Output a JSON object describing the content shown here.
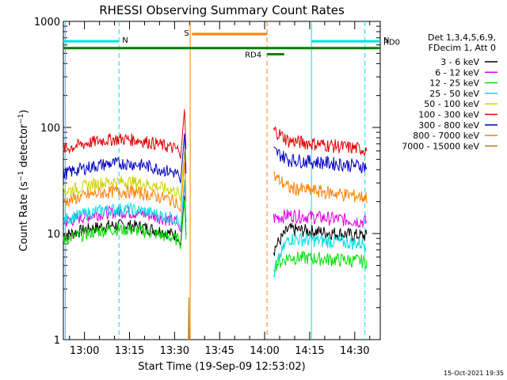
{
  "chart_data": {
    "type": "line",
    "title": "RHESSI Observing Summary Count Rates",
    "xlabel": "Start Time (19-Sep-09 12:53:02)",
    "ylabel": "Count Rate (s⁻¹ detector⁻¹)",
    "ylabel_main": "Count Rate (s",
    "ylabel_sup1": "−1",
    "ylabel_mid": " detector",
    "ylabel_sup2": "−1",
    "ylabel_end": ")",
    "y_scale": "log",
    "ylim": [
      1,
      1000
    ],
    "xlim_min": [
      -7.03,
      98.5
    ],
    "x_ticks": [
      {
        "m": 0,
        "label": "13:00"
      },
      {
        "m": 15,
        "label": "13:15"
      },
      {
        "m": 30,
        "label": "13:30"
      },
      {
        "m": 45,
        "label": "13:45"
      },
      {
        "m": 60,
        "label": "14:00"
      },
      {
        "m": 75,
        "label": "14:15"
      },
      {
        "m": 90,
        "label": "14:30"
      }
    ],
    "y_ticks": [
      {
        "v": 1,
        "label": "1"
      },
      {
        "v": 10,
        "label": "10"
      },
      {
        "v": 100,
        "label": "100"
      },
      {
        "v": 1000,
        "label": "1000"
      }
    ],
    "legend_header": [
      "Det 1,3,4,5,6,9,",
      "FDecim 1, Att 0"
    ],
    "legend_position": "right",
    "series": [
      {
        "name": "3 - 6 keV",
        "color": "#000000",
        "pre_peak": 12,
        "gap": [
          7,
          11,
          9.5
        ],
        "kind": "band"
      },
      {
        "name": "6 - 12 keV",
        "color": "#e000e0",
        "pre_peak": 16,
        "gap": [
          14,
          15,
          13
        ],
        "kind": "band"
      },
      {
        "name": "12 - 25 keV",
        "color": "#00e000",
        "pre_peak": 11,
        "gap": [
          5,
          6,
          5.5
        ],
        "kind": "band"
      },
      {
        "name": "25 - 50 keV",
        "color": "#00e0e0",
        "pre_peak": 17,
        "gap": [
          4,
          9,
          8
        ],
        "kind": "band"
      },
      {
        "name": "50 - 100 keV",
        "color": "#d0d000",
        "pre_peak": 31,
        "gap": null,
        "kind": "band"
      },
      {
        "name": "100 - 300 keV",
        "color": "#e00000",
        "pre_peak": 78,
        "gap": [
          95,
          75,
          62
        ],
        "kind": "band"
      },
      {
        "name": "300 - 800 keV",
        "color": "#0000c0",
        "pre_peak": 46,
        "gap": [
          60,
          50,
          43
        ],
        "kind": "band"
      },
      {
        "name": "800 - 7000 keV",
        "color": "#ff8000",
        "pre_peak": 25,
        "gap": [
          35,
          27,
          22
        ],
        "kind": "band"
      },
      {
        "name": "7000 - 15000 keV",
        "color": "#b08000",
        "pre_peak": null,
        "gap": null,
        "kind": "spike"
      }
    ],
    "segment_markers": [
      {
        "label": "N",
        "color": "#00e0e0",
        "x0": -7.03,
        "x1": 11.5,
        "level": 650,
        "style": "bar"
      },
      {
        "label": "N",
        "color": "#00e0e0",
        "x0": 75.6,
        "x1": 98.5,
        "level": 650,
        "style": "bar"
      },
      {
        "label": "S",
        "color": "#ff8000",
        "x0": 35.8,
        "x1": 60.8,
        "level": 760,
        "style": "bar"
      },
      {
        "label": "RD0",
        "color": "#008000",
        "x0": -7.03,
        "x1": 98.5,
        "level": 560,
        "style": "bar"
      },
      {
        "label": "RD4",
        "color": "#008000",
        "x0": 60.8,
        "x1": 66.5,
        "level": 490,
        "style": "bar"
      }
    ],
    "vertical_lines": [
      {
        "m": -6.4,
        "color": "#00e0e0",
        "style": "solid"
      },
      {
        "m": 11.5,
        "color": "#00e0e0",
        "style": "dashed"
      },
      {
        "m": 35.2,
        "color": "#ff8000",
        "style": "solid"
      },
      {
        "m": 60.8,
        "color": "#ff8000",
        "style": "dashed"
      },
      {
        "m": 75.6,
        "color": "#00e0e0",
        "style": "solid"
      },
      {
        "m": 93.4,
        "color": "#00e0e0",
        "style": "dashed"
      }
    ]
  },
  "footer": {
    "timestamp": "15-Oct-2021 19:35"
  }
}
